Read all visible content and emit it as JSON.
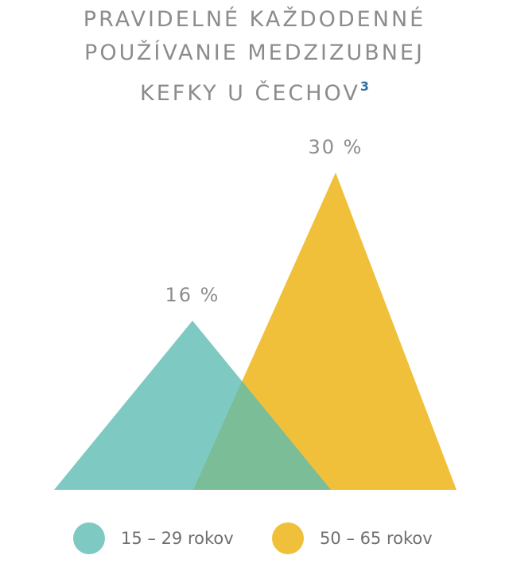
{
  "title": {
    "line1": "PRAVIDELNÉ KAŽDODENNÉ",
    "line2": "POUŽÍVANIE MEDZIZUBNEJ",
    "line3": "KEFKY U ČECHOV",
    "footnote": "3"
  },
  "colors": {
    "series1": "#7ecac3",
    "series2": "#f0c03a",
    "overlap": "#7abd97",
    "label": "#8c8c8c"
  },
  "chart_data": {
    "type": "area",
    "title": "PRAVIDELNÉ KAŽDODENNÉ POUŽÍVANIE MEDZIZUBNEJ KEFKY U ČECHOV",
    "unit": "%",
    "ylim": [
      0,
      30
    ],
    "grid": false,
    "legend_position": "bottom",
    "series": [
      {
        "name": "15 – 29 rokov",
        "value": 16,
        "label": "16 %"
      },
      {
        "name": "50 – 65 rokov",
        "value": 30,
        "label": "30 %"
      }
    ]
  }
}
